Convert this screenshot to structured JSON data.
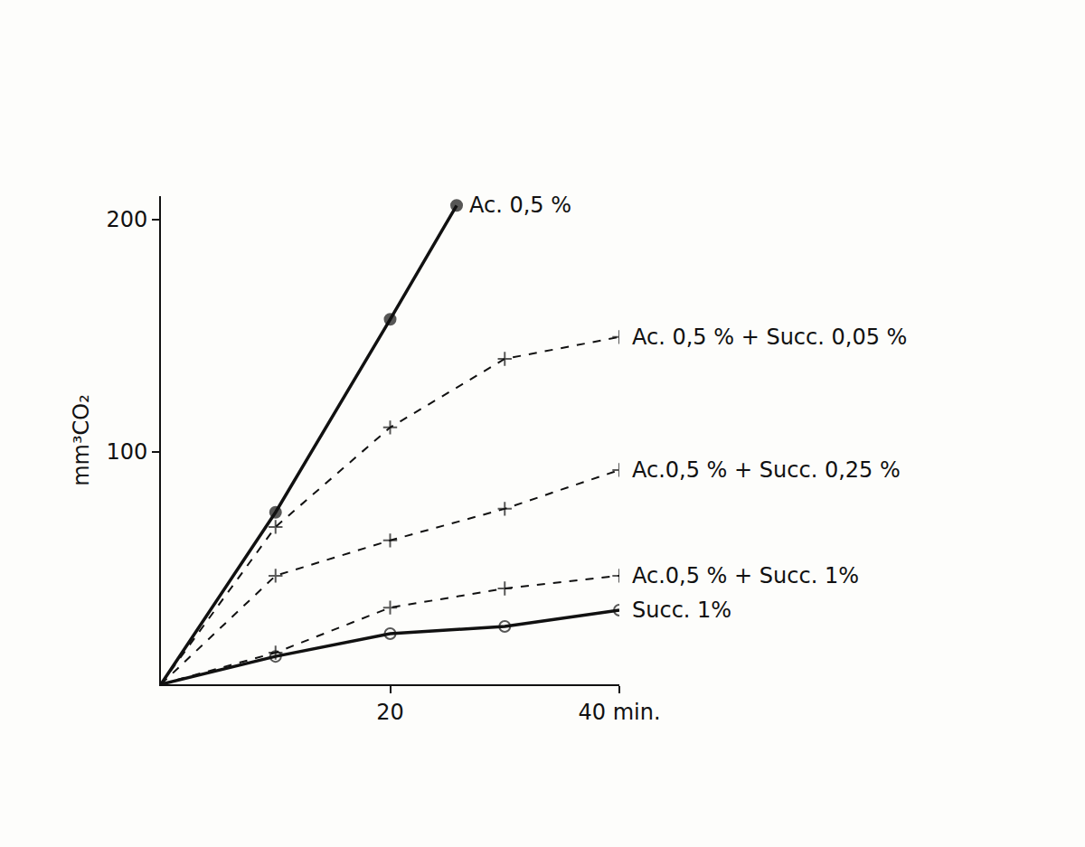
{
  "chart_data": {
    "type": "line",
    "y_label": "mm³CO₂",
    "xlim": [
      0,
      40
    ],
    "ylim": [
      0,
      210
    ],
    "xticks": [
      20,
      {
        "value": 40,
        "label": "40 min."
      }
    ],
    "yticks": [
      100,
      200
    ],
    "grid": false,
    "series": [
      {
        "name": "Ac. 0,5 %",
        "color": "#111111",
        "marker": "circle",
        "line_style": "solid",
        "x": [
          0,
          10,
          20,
          25.8
        ],
        "values": [
          0,
          74,
          157,
          206
        ]
      },
      {
        "name": "Ac. 0,5 % + Succ. 0,05 %",
        "color": "#111111",
        "marker": "cross",
        "line_style": "dash",
        "x": [
          0,
          10,
          20,
          30,
          40
        ],
        "values": [
          0,
          67.7,
          110.5,
          140,
          149.4
        ]
      },
      {
        "name": "Ac.0,5 % + Succ. 0,25 %",
        "color": "#111111",
        "marker": "cross",
        "line_style": "dash",
        "x": [
          0,
          10,
          20,
          30,
          40
        ],
        "values": [
          0,
          46.7,
          61.9,
          75.5,
          92.2
        ]
      },
      {
        "name": "Ac.0,5 % + Succ. 1%",
        "color": "#111111",
        "marker": "cross",
        "line_style": "dash",
        "x": [
          0,
          10,
          20,
          30,
          40
        ],
        "values": [
          0,
          13.6,
          33,
          41.2,
          46.7
        ]
      },
      {
        "name": "Succ. 1%",
        "color": "#111111",
        "marker": "circle-open",
        "line_style": "solid",
        "x": [
          0,
          10,
          20,
          30,
          40
        ],
        "values": [
          0,
          12,
          21.8,
          24.9,
          31.9
        ]
      }
    ]
  }
}
